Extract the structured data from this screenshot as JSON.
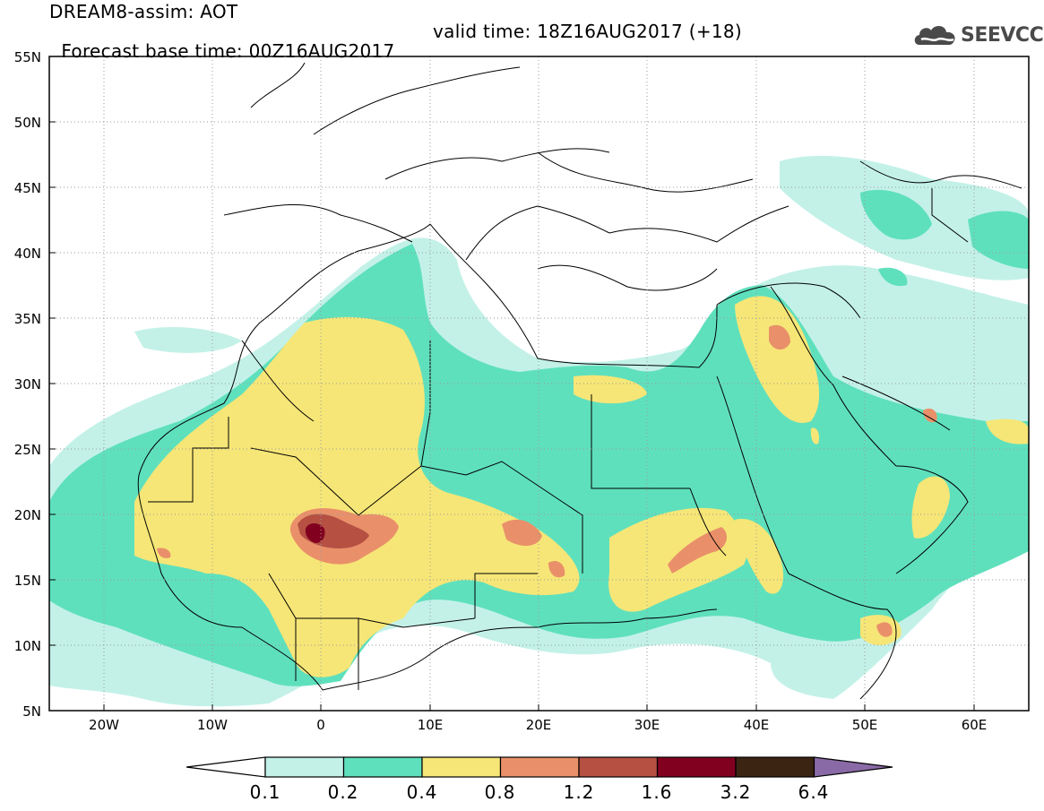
{
  "header": {
    "title": "DREAM8-assim: AOT",
    "base_time": "Forecast base time: 00Z16AUG2017",
    "valid_time": "valid time: 18Z16AUG2017 (+18)"
  },
  "logo": {
    "text": "SEEVCCC",
    "icon": "cloud-logo-icon"
  },
  "map": {
    "lon_range": [
      -25,
      65
    ],
    "lat_range": [
      5,
      55
    ],
    "lat_ticks": [
      "55N",
      "50N",
      "45N",
      "40N",
      "35N",
      "30N",
      "25N",
      "20N",
      "15N",
      "10N",
      "5N"
    ],
    "lon_ticks": [
      "20W",
      "10W",
      "0",
      "10E",
      "20E",
      "30E",
      "40E",
      "50E",
      "60E"
    ],
    "grid": true
  },
  "colorbar": {
    "labels": [
      "0.1",
      "0.2",
      "0.4",
      "0.8",
      "1.2",
      "1.6",
      "3.2",
      "6.4"
    ],
    "colors": [
      "#ffffff",
      "#c3f1e8",
      "#5fe0bd",
      "#f6e677",
      "#e9906a",
      "#b55043",
      "#82001f",
      "#3c2413",
      "#8a6aa6"
    ]
  }
}
